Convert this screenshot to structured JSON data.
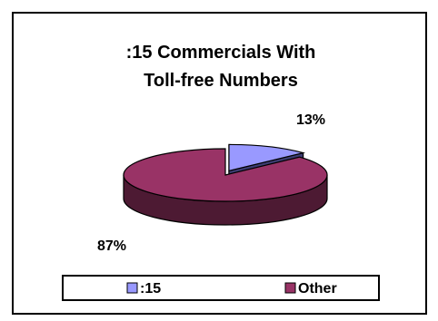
{
  "chart_data": {
    "type": "pie",
    "title": ":15 Commercials With Toll-free Numbers",
    "title_lines": [
      ":15 Commercials With",
      "Toll-free Numbers"
    ],
    "categories": [
      ":15",
      "Other"
    ],
    "values": [
      13,
      87
    ],
    "data_labels": [
      "13%",
      "87%"
    ],
    "colors": [
      {
        "top": "#9999ff",
        "side": "#3d3d73"
      },
      {
        "top": "#993366",
        "side": "#4d1a33"
      }
    ],
    "exploded_slice": ":15",
    "legend_position": "bottom",
    "style": "3d"
  }
}
